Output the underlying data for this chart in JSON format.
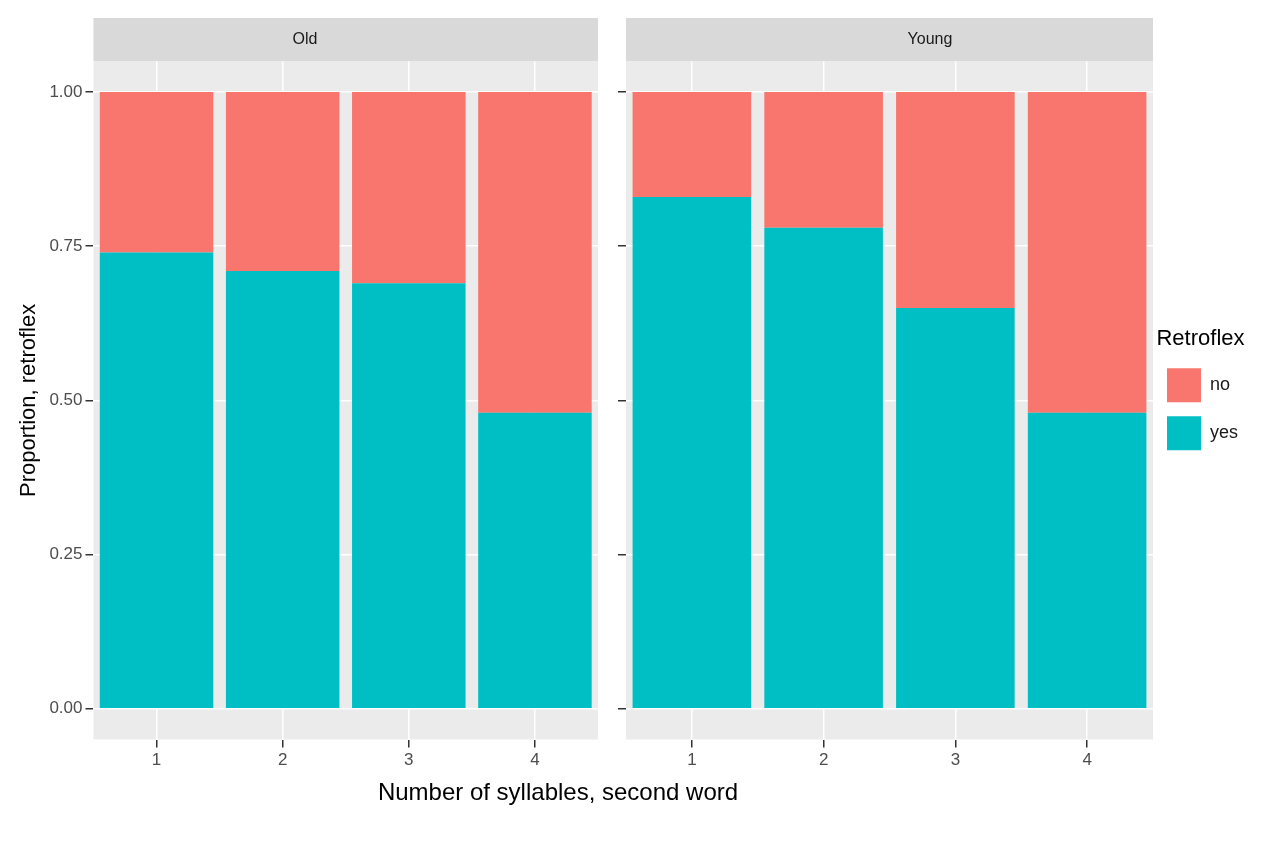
{
  "chart_data": [
    {
      "type": "bar",
      "title": "Old",
      "xlabel": "Number of syllables, second word",
      "ylabel": "Proportion, retroflex",
      "categories": [
        "1",
        "2",
        "3",
        "4"
      ],
      "stacked": true,
      "grid": true,
      "ylim": [
        -0.05,
        1.05
      ],
      "yticks": [
        {
          "value": 0,
          "label": "0.00"
        },
        {
          "value": 0.25,
          "label": "0.25"
        },
        {
          "value": 0.5,
          "label": "0.50"
        },
        {
          "value": 0.75,
          "label": "0.75"
        },
        {
          "value": 1,
          "label": "1.00"
        }
      ],
      "series": [
        {
          "color": "#00bfc4",
          "values": [
            0.74,
            0.71,
            0.69,
            0.48
          ]
        },
        {
          "color": "#f8766d",
          "values": [
            0.26,
            0.29,
            0.31,
            0.52
          ]
        }
      ]
    },
    {
      "type": "bar",
      "title": "Young",
      "categories": [
        "1",
        "2",
        "3",
        "4"
      ],
      "stacked": true,
      "grid": true,
      "legend": "right",
      "legend_title": "Retroflex",
      "tick_labels": "x",
      "ylim": [
        -0.05,
        1.05
      ],
      "yticks": [
        {
          "value": 0,
          "label": null
        },
        {
          "value": 0.25,
          "label": null
        },
        {
          "value": 0.5,
          "label": null
        },
        {
          "value": 0.75,
          "label": null
        },
        {
          "value": 1,
          "label": null
        }
      ],
      "series": [
        {
          "name": "yes",
          "color": "#00bfc4",
          "values": [
            0.83,
            0.78,
            0.65,
            0.48
          ]
        },
        {
          "name": "no",
          "color": "#f8766d",
          "values": [
            0.17,
            0.22,
            0.35,
            0.52
          ]
        }
      ]
    }
  ]
}
